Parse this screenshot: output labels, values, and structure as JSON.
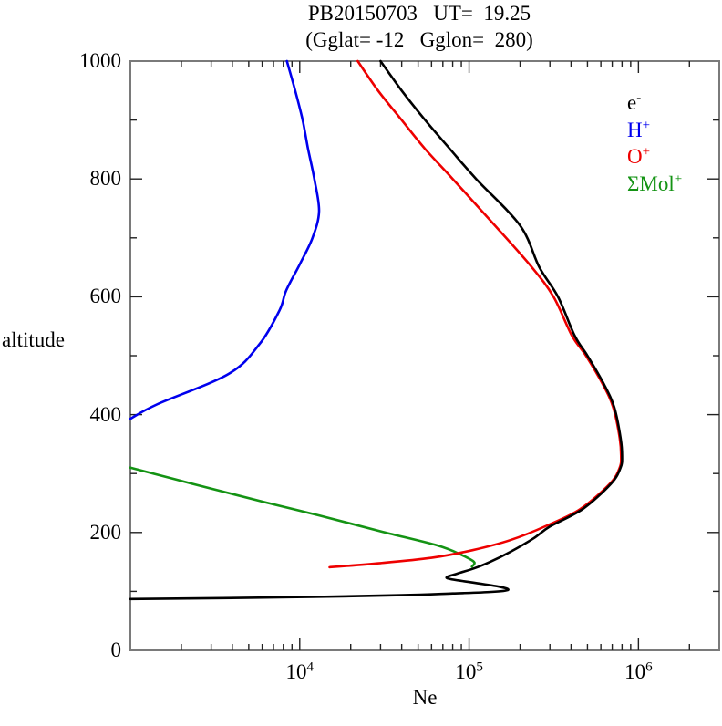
{
  "title": {
    "line1": "PB20150703   UT=  19.25",
    "line2": "(Gglat= -12   Gglon=  280)"
  },
  "axes": {
    "x": {
      "label": "Ne",
      "scale": "log",
      "min": 1000,
      "max": 3000000,
      "major_exponents": [
        4,
        5,
        6
      ],
      "minor_multiples": [
        2,
        3,
        4,
        5,
        6,
        7,
        8,
        9
      ],
      "tick_label_base": "10"
    },
    "y": {
      "label": "altitude",
      "min": 0,
      "max": 1000,
      "major_step": 200,
      "minor_step": 100,
      "tick_labels": [
        "0",
        "200",
        "400",
        "600",
        "800",
        "1000"
      ]
    }
  },
  "frame_color": "#7a7a7a",
  "tick_color": "#222222",
  "chart_data": {
    "type": "line",
    "title": "PB20150703 UT= 19.25 (Gglat= -12 Gglon= 280)",
    "xlabel": "Ne",
    "ylabel": "altitude",
    "x_scale": "log",
    "x_range": [
      1000,
      3000000
    ],
    "y_range": [
      0,
      1000
    ],
    "grid": false,
    "legend_position": "upper-right-inside",
    "series": [
      {
        "name": "Mol+",
        "legend_base": "ΣMol",
        "legend_sup": "+",
        "color": "#149314",
        "points_ne_alt": [
          [
            1000,
            310
          ],
          [
            2300,
            283
          ],
          [
            6100,
            252
          ],
          [
            13000,
            229
          ],
          [
            31000,
            201
          ],
          [
            65000,
            178
          ],
          [
            90000,
            162
          ],
          [
            107000,
            150
          ],
          [
            104000,
            142
          ]
        ]
      },
      {
        "name": "H+",
        "legend_base": "H",
        "legend_sup": "+",
        "color": "#0000ee",
        "points_ne_alt": [
          [
            1000,
            393
          ],
          [
            1450,
            418
          ],
          [
            3800,
            469
          ],
          [
            5800,
            520
          ],
          [
            7600,
            577
          ],
          [
            8300,
            610
          ],
          [
            10000,
            655
          ],
          [
            11900,
            700
          ],
          [
            13000,
            745
          ],
          [
            12200,
            800
          ],
          [
            11200,
            851
          ],
          [
            10400,
            900
          ],
          [
            9400,
            950
          ],
          [
            8400,
            1000
          ]
        ]
      },
      {
        "name": "O+",
        "legend_base": "O",
        "legend_sup": "+",
        "color": "#ee0000",
        "points_ne_alt": [
          [
            15000,
            141
          ],
          [
            30000,
            148
          ],
          [
            60000,
            157
          ],
          [
            105000,
            170
          ],
          [
            175000,
            187
          ],
          [
            290000,
            212
          ],
          [
            455000,
            240
          ],
          [
            680000,
            283
          ],
          [
            775000,
            310
          ],
          [
            790000,
            330
          ],
          [
            775000,
            360
          ],
          [
            710000,
            412
          ],
          [
            620000,
            450
          ],
          [
            490000,
            500
          ],
          [
            405000,
            534
          ],
          [
            315000,
            600
          ],
          [
            235000,
            650
          ],
          [
            142000,
            721
          ],
          [
            80000,
            800
          ],
          [
            55000,
            851
          ],
          [
            40000,
            900
          ],
          [
            29000,
            950
          ],
          [
            22000,
            1000
          ]
        ]
      },
      {
        "name": "e-",
        "legend_base": "e",
        "legend_sup": "-",
        "color": "#000000",
        "points_ne_alt": [
          [
            1000,
            87
          ],
          [
            3500,
            88.5
          ],
          [
            12000,
            90.5
          ],
          [
            40000,
            93.5
          ],
          [
            80000,
            96.5
          ],
          [
            135000,
            99
          ],
          [
            170000,
            102.5
          ],
          [
            150000,
            108
          ],
          [
            105000,
            115
          ],
          [
            74000,
            122.5
          ],
          [
            85000,
            130
          ],
          [
            107000,
            139
          ],
          [
            133000,
            150
          ],
          [
            175000,
            167
          ],
          [
            240000,
            190
          ],
          [
            300000,
            210
          ],
          [
            470000,
            240
          ],
          [
            690000,
            283
          ],
          [
            785000,
            310
          ],
          [
            800000,
            330
          ],
          [
            785000,
            360
          ],
          [
            720000,
            412
          ],
          [
            630000,
            450
          ],
          [
            500000,
            500
          ],
          [
            420000,
            534
          ],
          [
            335000,
            600
          ],
          [
            260000,
            650
          ],
          [
            200000,
            721
          ],
          [
            110000,
            800
          ],
          [
            77000,
            851
          ],
          [
            55000,
            900
          ],
          [
            40000,
            950
          ],
          [
            30000,
            1000
          ]
        ]
      }
    ],
    "legend_order": [
      "e-",
      "H+",
      "O+",
      "Mol+"
    ]
  }
}
